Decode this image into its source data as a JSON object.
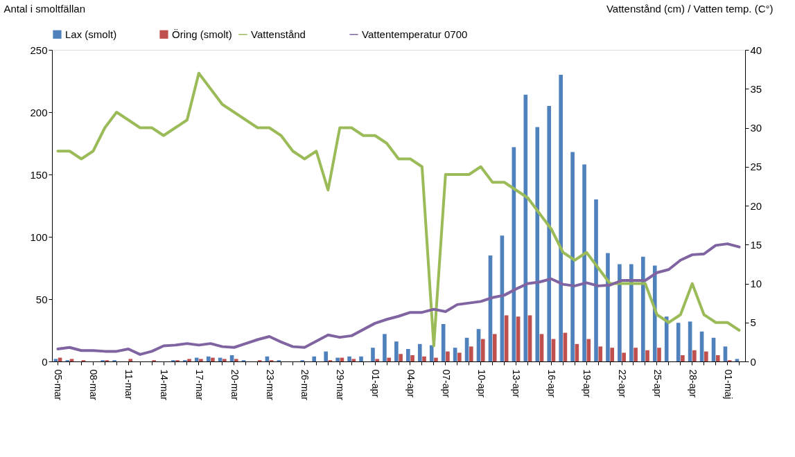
{
  "chart_data": {
    "type": "bar",
    "categories": [
      "05-mar",
      null,
      null,
      "08-mar",
      null,
      null,
      "11-mar",
      null,
      null,
      "14-mar",
      null,
      null,
      "17-mar",
      null,
      null,
      "20-mar",
      null,
      null,
      "23-mar",
      null,
      null,
      "26-mar",
      null,
      null,
      "29-mar",
      null,
      null,
      "01-apr",
      null,
      null,
      "04-apr",
      null,
      null,
      "07-apr",
      null,
      null,
      "10-apr",
      null,
      null,
      "13-apr",
      null,
      null,
      "16-apr",
      null,
      null,
      "19-apr",
      null,
      null,
      "22-apr",
      null,
      null,
      "25-apr",
      null,
      null,
      "28-apr",
      null,
      null,
      "01-maj",
      null
    ],
    "series": [
      {
        "name": "Lax (smolt)",
        "color": "#4f81bd",
        "values": [
          2,
          1,
          0,
          0,
          1,
          1,
          0,
          0,
          0,
          0,
          1,
          1,
          3,
          4,
          3,
          5,
          1,
          0,
          4,
          1,
          0,
          1,
          4,
          8,
          3,
          4,
          4,
          11,
          22,
          16,
          10,
          14,
          13,
          30,
          11,
          19,
          26,
          85,
          101,
          172,
          214,
          188,
          205,
          230,
          168,
          158,
          130,
          87,
          78,
          78,
          84,
          77,
          36,
          31,
          32,
          24,
          19,
          12,
          2
        ]
      },
      {
        "name": "Öring (smolt)",
        "color": "#c0504d",
        "values": [
          3,
          2,
          1,
          0,
          1,
          0,
          2,
          0,
          1,
          0,
          1,
          2,
          2,
          3,
          2,
          2,
          0,
          1,
          1,
          0,
          0,
          0,
          0,
          1,
          3,
          2,
          0,
          2,
          3,
          6,
          5,
          4,
          3,
          8,
          7,
          12,
          18,
          22,
          37,
          36,
          37,
          22,
          18,
          23,
          14,
          18,
          12,
          11,
          7,
          11,
          9,
          11,
          0,
          5,
          9,
          8,
          5,
          1,
          0
        ]
      },
      {
        "name": "Vattenstånd",
        "type": "line",
        "axis": "y2",
        "color": "#9bbb59",
        "values": [
          27,
          27,
          26,
          27,
          30,
          32,
          31,
          30,
          30,
          29,
          30,
          31,
          37,
          35,
          33,
          32,
          31,
          30,
          30,
          29,
          27,
          26,
          27,
          22,
          30,
          30,
          29,
          29,
          28,
          26,
          26,
          25,
          2,
          24,
          24,
          24,
          25,
          23,
          23,
          22,
          21,
          19,
          17,
          14,
          13,
          14,
          12,
          10,
          10,
          10,
          10,
          6,
          5,
          6,
          10,
          6,
          5,
          5,
          4
        ]
      },
      {
        "name": "Vattentemperatur 0700",
        "type": "line",
        "axis": "y2",
        "color": "#8064a2",
        "values": [
          1.6,
          1.8,
          1.4,
          1.4,
          1.3,
          1.3,
          1.6,
          0.9,
          1.3,
          2.0,
          2.1,
          2.3,
          2.1,
          2.3,
          1.9,
          1.8,
          2.3,
          2.8,
          3.2,
          2.5,
          1.9,
          1.8,
          2.6,
          3.4,
          3.1,
          3.3,
          4.1,
          4.9,
          5.4,
          5.8,
          6.3,
          6.3,
          6.7,
          6.4,
          7.3,
          7.5,
          7.7,
          8.2,
          8.5,
          9.3,
          10.0,
          10.2,
          10.6,
          9.9,
          9.7,
          10.1,
          9.7,
          9.8,
          10.4,
          10.4,
          10.4,
          11.4,
          11.8,
          13.0,
          13.7,
          13.8,
          14.9,
          15.1,
          14.7
        ]
      }
    ],
    "ylabel": "Antal i smoltfällan",
    "y2label": "Vattenstånd (cm) / Vatten temp. (C°)",
    "ylim": [
      0,
      250
    ],
    "yticks": [
      0,
      50,
      100,
      150,
      200,
      250
    ],
    "y2lim": [
      0,
      40
    ],
    "y2ticks": [
      0,
      5,
      10,
      15,
      20,
      25,
      30,
      35,
      40
    ],
    "legend": "top"
  }
}
